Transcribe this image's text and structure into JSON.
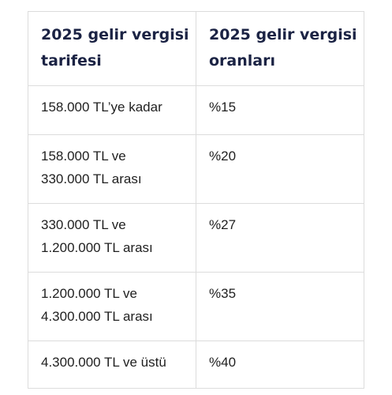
{
  "table": {
    "headers": [
      {
        "line1": "2025 gelir vergisi",
        "line2": "tarifesi"
      },
      {
        "line1": "2025 gelir vergisi",
        "line2": "oranları"
      }
    ],
    "rows": [
      {
        "range_line1": "158.000 TL’ye kadar",
        "range_line2": "",
        "rate": "%15"
      },
      {
        "range_line1": "158.000 TL ve",
        "range_line2": "330.000 TL arası",
        "rate": "%20"
      },
      {
        "range_line1": "330.000 TL ve",
        "range_line2": "1.200.000 TL arası",
        "rate": "%27"
      },
      {
        "range_line1": "1.200.000 TL ve",
        "range_line2": "4.300.000 TL arası",
        "rate": "%35"
      },
      {
        "range_line1": "4.300.000 TL ve üstü",
        "range_line2": "",
        "rate": "%40"
      }
    ]
  },
  "colors": {
    "header_text": "#1b2344",
    "body_text": "#1f1f1f",
    "border": "#dcdcdc",
    "background": "#ffffff"
  }
}
